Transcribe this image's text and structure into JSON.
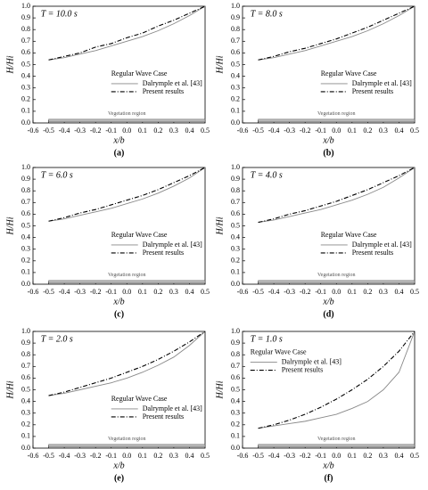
{
  "chart_data": [
    {
      "type": "line",
      "annotation": "T = 10.0 s",
      "xlabel": "x/b",
      "ylabel": "H/Hi",
      "panel_label": "(a)",
      "legend_title": "Regular Wave Case",
      "legend": "center right",
      "x": [
        -0.5,
        -0.4,
        -0.3,
        -0.2,
        -0.1,
        0,
        0.1,
        0.2,
        0.3,
        0.4,
        0.5
      ],
      "series": [
        {
          "name": "Dalrymple et al. [43]",
          "color": "#888888",
          "values": [
            0.54,
            0.56,
            0.59,
            0.62,
            0.66,
            0.7,
            0.74,
            0.79,
            0.85,
            0.92,
            1.0
          ]
        },
        {
          "name": "Present results",
          "color": "#000000",
          "values": [
            0.54,
            0.57,
            0.6,
            0.65,
            0.68,
            0.73,
            0.77,
            0.83,
            0.88,
            0.94,
            1.0
          ]
        }
      ],
      "vegetation_region": {
        "label": "Vegetation region",
        "range": [
          -0.5,
          0.5
        ]
      },
      "xlim": [
        -0.6,
        0.5
      ],
      "xticks": [
        -0.6,
        -0.5,
        -0.4,
        -0.3,
        -0.2,
        -0.1,
        {
          "value": 0,
          "label": "0.0"
        },
        0.1,
        0.2,
        0.3,
        0.4,
        0.5
      ],
      "ylim": [
        0,
        1
      ],
      "yticks": [
        {
          "value": 0,
          "label": "0.0"
        },
        0.1,
        0.2,
        0.3,
        0.4,
        0.5,
        0.6,
        0.7,
        0.8,
        0.9,
        {
          "value": 1,
          "label": "1.0"
        }
      ]
    },
    {
      "type": "line",
      "annotation": "T = 8.0 s",
      "xlabel": "x/b",
      "ylabel": "H/Hi",
      "panel_label": "(b)",
      "legend_title": "Regular Wave Case",
      "legend": "center right",
      "x": [
        -0.5,
        -0.4,
        -0.3,
        -0.2,
        -0.1,
        0,
        0.1,
        0.2,
        0.3,
        0.4,
        0.5
      ],
      "series": [
        {
          "name": "Dalrymple et al. [43]",
          "color": "#888888",
          "values": [
            0.54,
            0.56,
            0.59,
            0.62,
            0.66,
            0.7,
            0.74,
            0.79,
            0.85,
            0.92,
            1.0
          ]
        },
        {
          "name": "Present results",
          "color": "#000000",
          "values": [
            0.54,
            0.57,
            0.61,
            0.64,
            0.68,
            0.72,
            0.77,
            0.82,
            0.88,
            0.94,
            1.0
          ]
        }
      ],
      "vegetation_region": {
        "label": "Vegetation region",
        "range": [
          -0.5,
          0.5
        ]
      },
      "xlim": [
        -0.6,
        0.5
      ],
      "xticks": [
        -0.6,
        -0.5,
        -0.4,
        -0.3,
        -0.2,
        -0.1,
        {
          "value": 0,
          "label": "0.0"
        },
        0.1,
        0.2,
        0.3,
        0.4,
        0.5
      ],
      "ylim": [
        0,
        1
      ],
      "yticks": [
        {
          "value": 0,
          "label": "0.0"
        },
        0.1,
        0.2,
        0.3,
        0.4,
        0.5,
        0.6,
        0.7,
        0.8,
        0.9,
        {
          "value": 1,
          "label": "1.0"
        }
      ]
    },
    {
      "type": "line",
      "annotation": "T = 6.0 s",
      "xlabel": "x/b",
      "ylabel": "H/Hi",
      "panel_label": "(c)",
      "legend_title": "Regular Wave Case",
      "legend": "center right",
      "x": [
        -0.5,
        -0.4,
        -0.3,
        -0.2,
        -0.1,
        0,
        0.1,
        0.2,
        0.3,
        0.4,
        0.5
      ],
      "series": [
        {
          "name": "Dalrymple et al. [43]",
          "color": "#888888",
          "values": [
            0.54,
            0.56,
            0.59,
            0.62,
            0.65,
            0.69,
            0.73,
            0.78,
            0.84,
            0.91,
            1.0
          ]
        },
        {
          "name": "Present results",
          "color": "#000000",
          "values": [
            0.54,
            0.57,
            0.61,
            0.64,
            0.68,
            0.72,
            0.76,
            0.81,
            0.87,
            0.93,
            1.0
          ]
        }
      ],
      "vegetation_region": {
        "label": "Vegetation region",
        "range": [
          -0.5,
          0.5
        ]
      },
      "xlim": [
        -0.6,
        0.5
      ],
      "xticks": [
        -0.6,
        -0.5,
        -0.4,
        -0.3,
        -0.2,
        -0.1,
        {
          "value": 0,
          "label": "0.0"
        },
        0.1,
        0.2,
        0.3,
        0.4,
        0.5
      ],
      "ylim": [
        0,
        1
      ],
      "yticks": [
        {
          "value": 0,
          "label": "0.0"
        },
        0.1,
        0.2,
        0.3,
        0.4,
        0.5,
        0.6,
        0.7,
        0.8,
        0.9,
        {
          "value": 1,
          "label": "1.0"
        }
      ]
    },
    {
      "type": "line",
      "annotation": "T = 4.0 s",
      "xlabel": "x/b",
      "ylabel": "H/Hi",
      "panel_label": "(d)",
      "legend_title": "Regular Wave Case",
      "legend": "center right",
      "x": [
        -0.5,
        -0.4,
        -0.3,
        -0.2,
        -0.1,
        0,
        0.1,
        0.2,
        0.3,
        0.4,
        0.5
      ],
      "series": [
        {
          "name": "Dalrymple et al. [43]",
          "color": "#888888",
          "values": [
            0.53,
            0.55,
            0.58,
            0.61,
            0.64,
            0.68,
            0.72,
            0.77,
            0.83,
            0.91,
            1.0
          ]
        },
        {
          "name": "Present results",
          "color": "#000000",
          "values": [
            0.53,
            0.56,
            0.6,
            0.63,
            0.67,
            0.71,
            0.76,
            0.81,
            0.87,
            0.93,
            1.0
          ]
        }
      ],
      "vegetation_region": {
        "label": "Vegetation region",
        "range": [
          -0.5,
          0.5
        ]
      },
      "xlim": [
        -0.6,
        0.5
      ],
      "xticks": [
        -0.6,
        -0.5,
        -0.4,
        -0.3,
        -0.2,
        -0.1,
        {
          "value": 0,
          "label": "0.0"
        },
        0.1,
        0.2,
        0.3,
        0.4,
        0.5
      ],
      "ylim": [
        0,
        1
      ],
      "yticks": [
        {
          "value": 0,
          "label": "0.0"
        },
        0.1,
        0.2,
        0.3,
        0.4,
        0.5,
        0.6,
        0.7,
        0.8,
        0.9,
        {
          "value": 1,
          "label": "1.0"
        }
      ]
    },
    {
      "type": "line",
      "annotation": "T = 2.0 s",
      "xlabel": "x/b",
      "ylabel": "H/Hi",
      "panel_label": "(e)",
      "legend_title": "Regular Wave Case",
      "legend": "center right",
      "x": [
        -0.5,
        -0.4,
        -0.3,
        -0.2,
        -0.1,
        0,
        0.1,
        0.2,
        0.3,
        0.4,
        0.5
      ],
      "series": [
        {
          "name": "Dalrymple et al. [43]",
          "color": "#888888",
          "values": [
            0.45,
            0.47,
            0.5,
            0.53,
            0.56,
            0.6,
            0.65,
            0.71,
            0.78,
            0.88,
            1.0
          ]
        },
        {
          "name": "Present results",
          "color": "#000000",
          "values": [
            0.45,
            0.48,
            0.52,
            0.56,
            0.6,
            0.65,
            0.7,
            0.76,
            0.83,
            0.91,
            1.0
          ]
        }
      ],
      "vegetation_region": {
        "label": "Vegetation region",
        "range": [
          -0.5,
          0.5
        ]
      },
      "xlim": [
        -0.6,
        0.5
      ],
      "xticks": [
        -0.6,
        -0.5,
        -0.4,
        -0.3,
        -0.2,
        -0.1,
        {
          "value": 0,
          "label": "0.0"
        },
        0.1,
        0.2,
        0.3,
        0.4,
        0.5
      ],
      "ylim": [
        0,
        1
      ],
      "yticks": [
        {
          "value": 0,
          "label": "0.0"
        },
        0.1,
        0.2,
        0.3,
        0.4,
        0.5,
        0.6,
        0.7,
        0.8,
        0.9,
        {
          "value": 1,
          "label": "1.0"
        }
      ]
    },
    {
      "type": "line",
      "annotation": "T = 1.0 s",
      "xlabel": "x/b",
      "ylabel": "H/Hi",
      "panel_label": "(f)",
      "legend_title": "Regular Wave Case",
      "legend": "upper left",
      "x": [
        -0.5,
        -0.4,
        -0.3,
        -0.2,
        -0.1,
        0,
        0.1,
        0.2,
        0.3,
        0.4,
        0.5
      ],
      "series": [
        {
          "name": "Dalrymple et al. [43]",
          "color": "#888888",
          "values": [
            0.17,
            0.19,
            0.21,
            0.23,
            0.26,
            0.29,
            0.34,
            0.4,
            0.5,
            0.65,
            1.0
          ]
        },
        {
          "name": "Present results",
          "color": "#000000",
          "values": [
            0.17,
            0.2,
            0.24,
            0.29,
            0.35,
            0.42,
            0.5,
            0.59,
            0.7,
            0.83,
            1.0
          ]
        }
      ],
      "vegetation_region": {
        "label": "Vegetation region",
        "range": [
          -0.5,
          0.5
        ]
      },
      "xlim": [
        -0.6,
        0.5
      ],
      "xticks": [
        -0.6,
        -0.5,
        -0.4,
        -0.3,
        -0.2,
        -0.1,
        {
          "value": 0,
          "label": "0.0"
        },
        0.1,
        0.2,
        0.3,
        0.4,
        0.5
      ],
      "ylim": [
        0,
        1
      ],
      "yticks": [
        {
          "value": 0,
          "label": "0.0"
        },
        0.1,
        0.2,
        0.3,
        0.4,
        0.5,
        0.6,
        0.7,
        0.8,
        0.9,
        {
          "value": 1,
          "label": "1.0"
        }
      ]
    }
  ]
}
